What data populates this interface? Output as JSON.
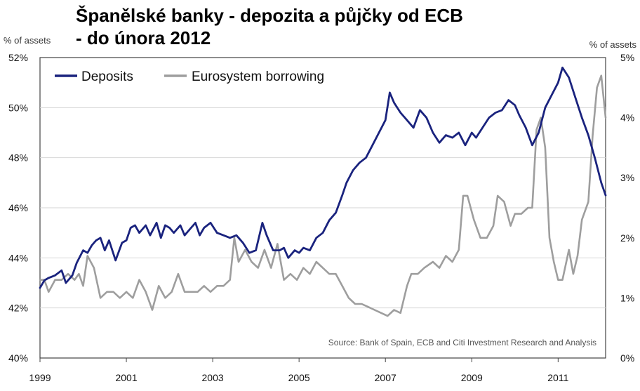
{
  "title_line1": "Španělské banky - depozita a půjčky od ECB",
  "title_line2": "- do února 2012",
  "chart_data": {
    "type": "line",
    "left_axis_unit": "% of assets",
    "right_axis_unit": "% of assets",
    "left_ticks": [
      "52%",
      "50%",
      "48%",
      "46%",
      "44%",
      "42%",
      "40%"
    ],
    "left_ylim": [
      40,
      52
    ],
    "right_ticks": [
      "5%",
      "4%",
      "3%",
      "2%",
      "1%",
      "0%"
    ],
    "right_ylim": [
      0,
      5
    ],
    "x_ticks": [
      "1999",
      "2001",
      "2003",
      "2005",
      "2007",
      "2009",
      "2011"
    ],
    "xlim": [
      1999,
      2012.1
    ],
    "grid": "horizontal",
    "legend_position": "top-left",
    "source": "Source: Bank of Spain, ECB and Citi Investment Research and Analysis",
    "series": [
      {
        "name": "Deposits",
        "axis": "left",
        "color": "#1a237e",
        "x": [
          1999.0,
          1999.1,
          1999.2,
          1999.35,
          1999.5,
          1999.6,
          1999.75,
          1999.85,
          2000.0,
          2000.1,
          2000.2,
          2000.3,
          2000.4,
          2000.5,
          2000.6,
          2000.75,
          2000.9,
          2001.0,
          2001.1,
          2001.2,
          2001.3,
          2001.45,
          2001.55,
          2001.7,
          2001.8,
          2001.9,
          2002.0,
          2002.1,
          2002.25,
          2002.35,
          2002.5,
          2002.6,
          2002.7,
          2002.8,
          2002.95,
          2003.1,
          2003.25,
          2003.4,
          2003.55,
          2003.7,
          2003.85,
          2004.0,
          2004.15,
          2004.25,
          2004.4,
          2004.55,
          2004.65,
          2004.75,
          2004.9,
          2005.0,
          2005.1,
          2005.25,
          2005.4,
          2005.55,
          2005.7,
          2005.85,
          2006.0,
          2006.1,
          2006.25,
          2006.4,
          2006.55,
          2006.7,
          2006.85,
          2007.0,
          2007.1,
          2007.2,
          2007.35,
          2007.5,
          2007.65,
          2007.8,
          2007.95,
          2008.1,
          2008.25,
          2008.4,
          2008.55,
          2008.7,
          2008.85,
          2009.0,
          2009.1,
          2009.25,
          2009.4,
          2009.55,
          2009.7,
          2009.85,
          2010.0,
          2010.1,
          2010.25,
          2010.4,
          2010.55,
          2010.7,
          2010.85,
          2011.0,
          2011.1,
          2011.25,
          2011.4,
          2011.55,
          2011.7,
          2011.85,
          2012.0,
          2012.1
        ],
        "values": [
          42.8,
          43.1,
          43.2,
          43.3,
          43.5,
          43.0,
          43.3,
          43.8,
          44.3,
          44.2,
          44.5,
          44.7,
          44.8,
          44.3,
          44.7,
          43.9,
          44.6,
          44.7,
          45.2,
          45.3,
          45.0,
          45.3,
          44.9,
          45.4,
          44.8,
          45.3,
          45.2,
          45.0,
          45.3,
          44.9,
          45.2,
          45.4,
          44.9,
          45.2,
          45.4,
          45.0,
          44.9,
          44.8,
          44.9,
          44.6,
          44.2,
          44.3,
          45.4,
          44.9,
          44.3,
          44.3,
          44.4,
          44.0,
          44.3,
          44.2,
          44.4,
          44.3,
          44.8,
          45.0,
          45.5,
          45.8,
          46.5,
          47.0,
          47.5,
          47.8,
          48.0,
          48.5,
          49.0,
          49.5,
          50.6,
          50.2,
          49.8,
          49.5,
          49.2,
          49.9,
          49.6,
          49.0,
          48.6,
          48.9,
          48.8,
          49.0,
          48.5,
          49.0,
          48.8,
          49.2,
          49.6,
          49.8,
          49.9,
          50.3,
          50.1,
          49.7,
          49.2,
          48.5,
          49.0,
          50.0,
          50.5,
          51.0,
          51.6,
          51.2,
          50.4,
          49.6,
          48.9,
          48.0,
          47.0,
          46.5
        ]
      },
      {
        "name": "Eurosystem borrowing",
        "axis": "right",
        "color": "#9e9e9e",
        "x": [
          1999.0,
          1999.1,
          1999.2,
          1999.35,
          1999.5,
          1999.65,
          1999.8,
          1999.9,
          2000.0,
          2000.1,
          2000.25,
          2000.4,
          2000.55,
          2000.7,
          2000.85,
          2001.0,
          2001.15,
          2001.3,
          2001.45,
          2001.6,
          2001.75,
          2001.9,
          2002.05,
          2002.2,
          2002.35,
          2002.5,
          2002.65,
          2002.8,
          2002.95,
          2003.1,
          2003.25,
          2003.4,
          2003.5,
          2003.6,
          2003.75,
          2003.9,
          2004.05,
          2004.2,
          2004.35,
          2004.5,
          2004.65,
          2004.8,
          2004.95,
          2005.1,
          2005.25,
          2005.4,
          2005.55,
          2005.7,
          2005.85,
          2006.0,
          2006.15,
          2006.3,
          2006.45,
          2006.6,
          2006.75,
          2006.9,
          2007.05,
          2007.2,
          2007.35,
          2007.5,
          2007.6,
          2007.75,
          2007.9,
          2008.1,
          2008.25,
          2008.4,
          2008.55,
          2008.7,
          2008.8,
          2008.9,
          2009.05,
          2009.2,
          2009.35,
          2009.5,
          2009.6,
          2009.75,
          2009.9,
          2010.0,
          2010.15,
          2010.3,
          2010.4,
          2010.5,
          2010.6,
          2010.7,
          2010.8,
          2010.9,
          2011.0,
          2011.1,
          2011.25,
          2011.35,
          2011.45,
          2011.55,
          2011.7,
          2011.8,
          2011.9,
          2012.0,
          2012.1
        ],
        "values": [
          1.3,
          1.3,
          1.1,
          1.3,
          1.3,
          1.4,
          1.3,
          1.4,
          1.2,
          1.7,
          1.5,
          1.0,
          1.1,
          1.1,
          1.0,
          1.1,
          1.0,
          1.3,
          1.1,
          0.8,
          1.2,
          1.0,
          1.1,
          1.4,
          1.1,
          1.1,
          1.1,
          1.2,
          1.1,
          1.2,
          1.2,
          1.3,
          2.0,
          1.6,
          1.8,
          1.6,
          1.5,
          1.8,
          1.5,
          1.9,
          1.3,
          1.4,
          1.3,
          1.5,
          1.4,
          1.6,
          1.5,
          1.4,
          1.4,
          1.2,
          1.0,
          0.9,
          0.9,
          0.85,
          0.8,
          0.75,
          0.7,
          0.8,
          0.75,
          1.2,
          1.4,
          1.4,
          1.5,
          1.6,
          1.5,
          1.7,
          1.6,
          1.8,
          2.7,
          2.7,
          2.3,
          2.0,
          2.0,
          2.2,
          2.7,
          2.6,
          2.2,
          2.4,
          2.4,
          2.5,
          2.5,
          3.8,
          4.0,
          3.5,
          2.0,
          1.6,
          1.3,
          1.3,
          1.8,
          1.4,
          1.7,
          2.3,
          2.6,
          3.7,
          4.5,
          4.7,
          4.0
        ]
      }
    ]
  }
}
